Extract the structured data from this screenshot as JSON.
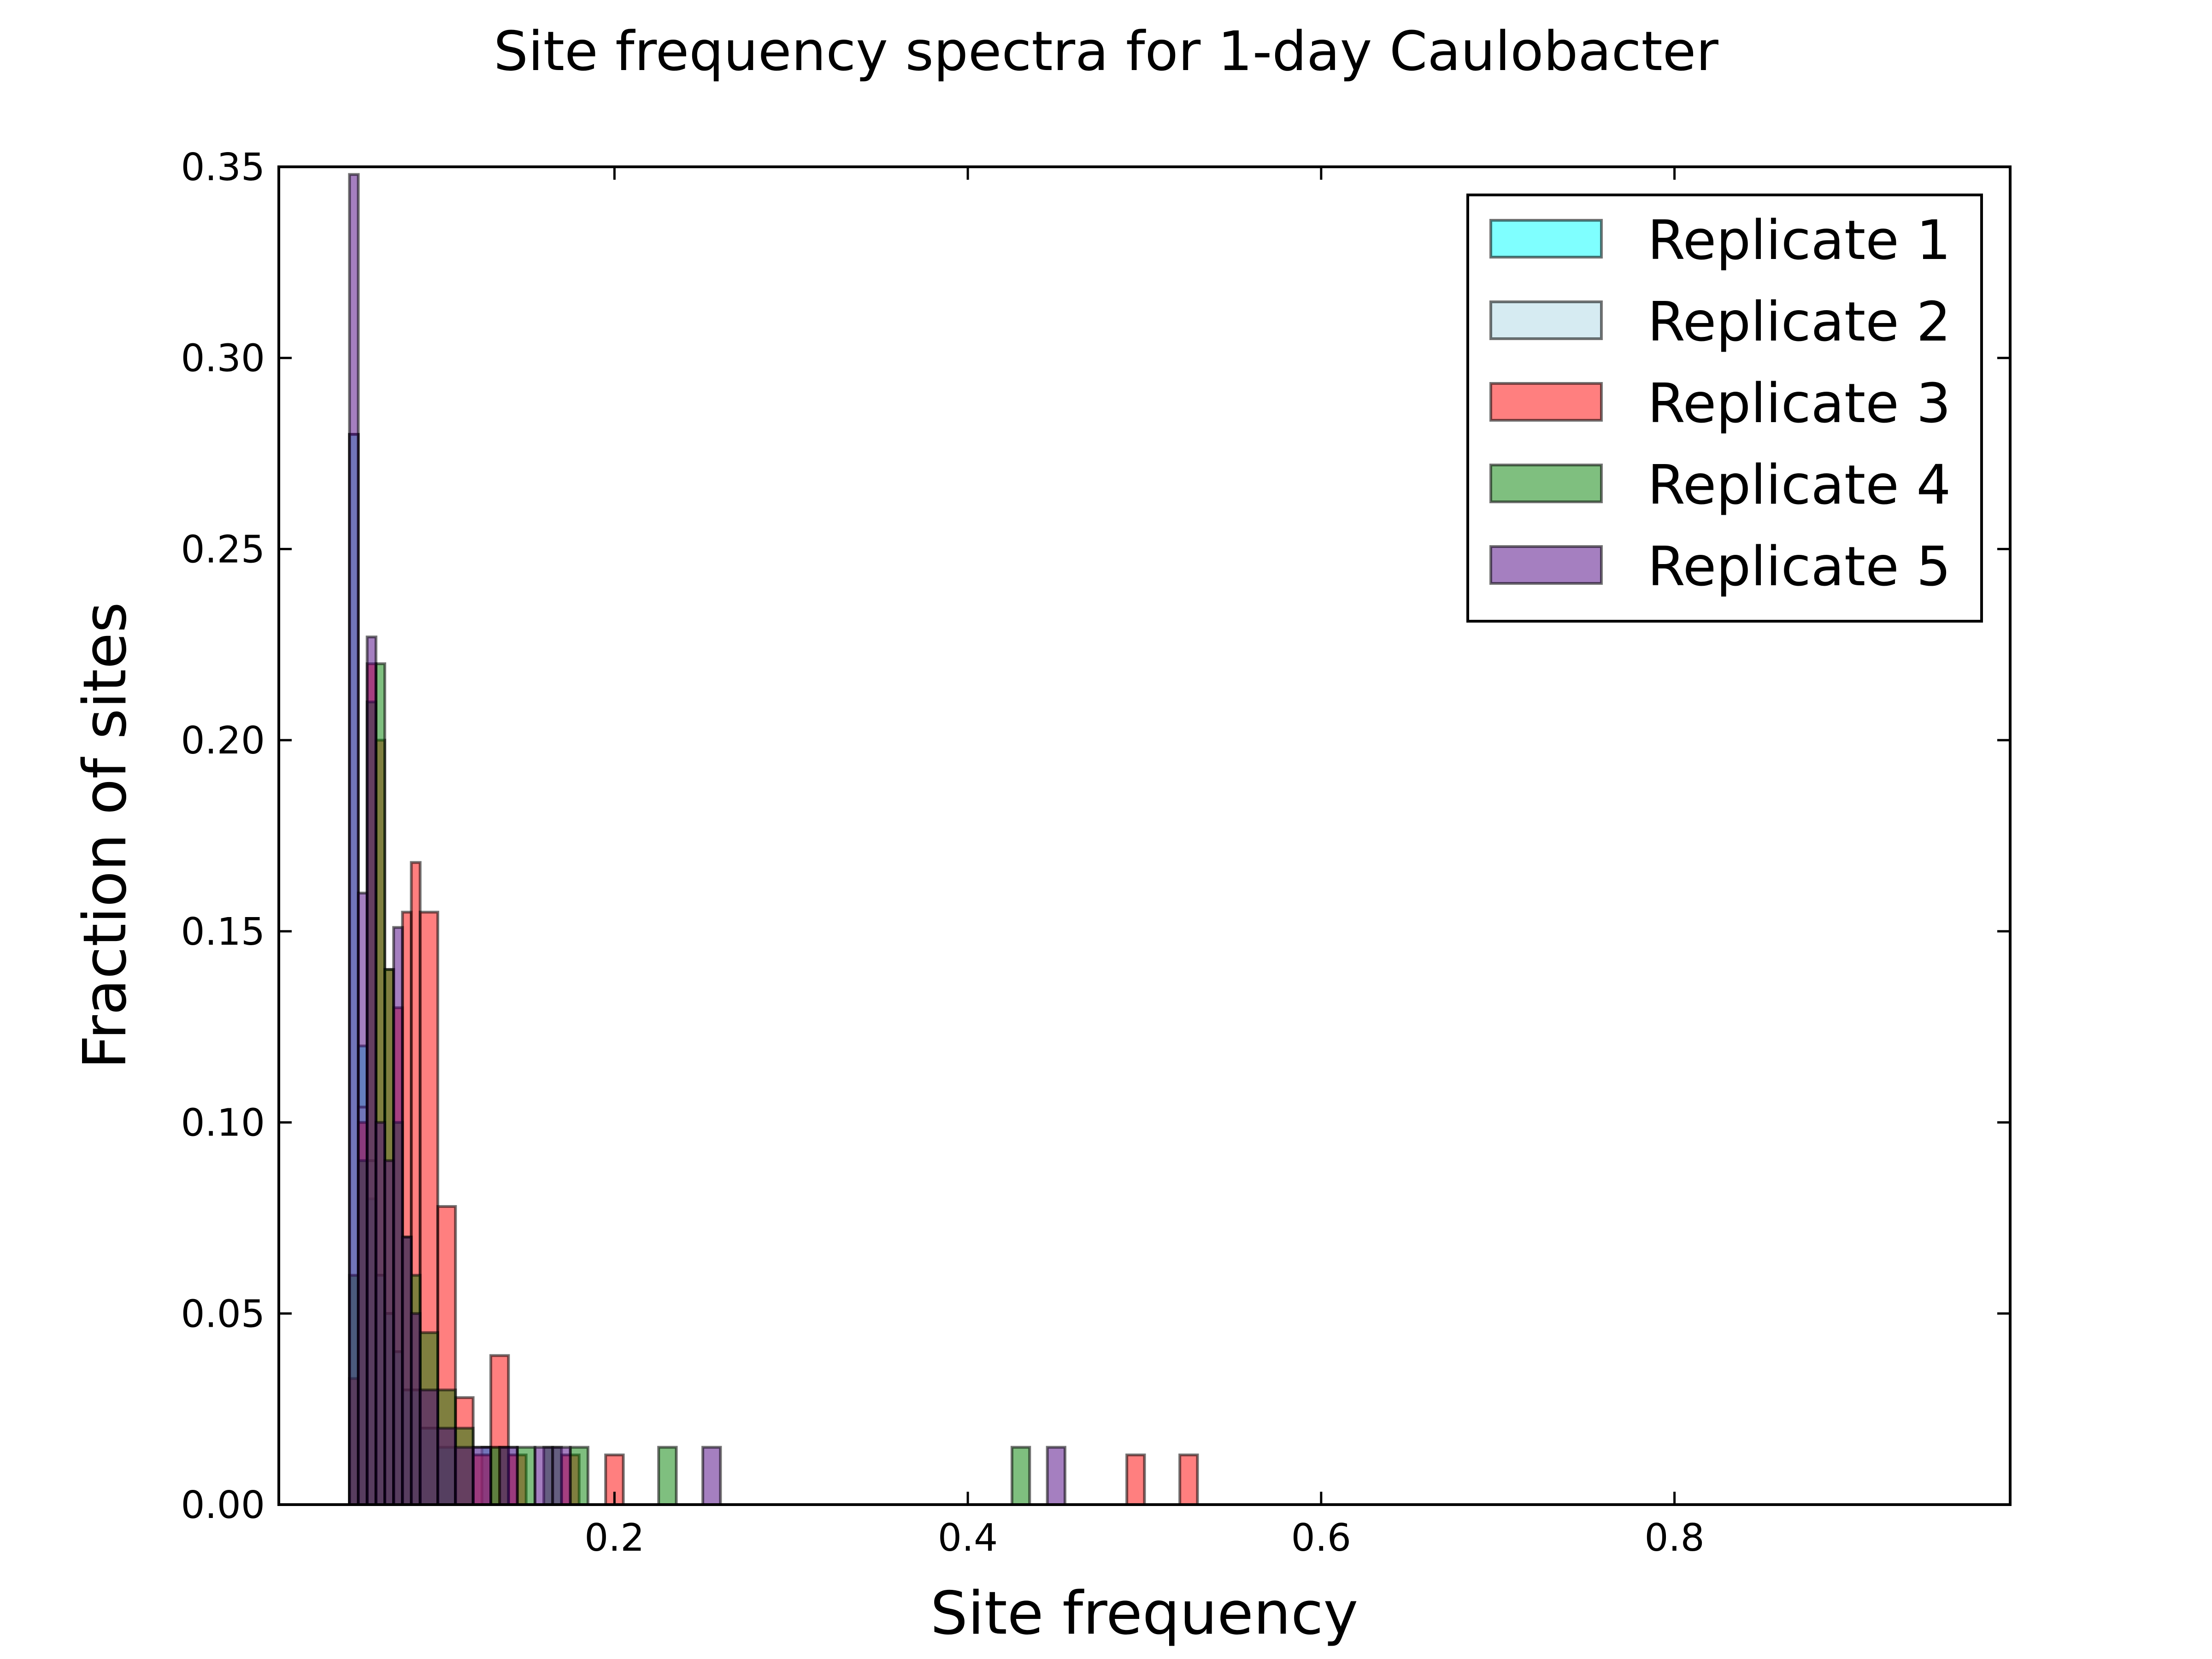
{
  "chart_data": {
    "type": "bar",
    "title": "Site frequency spectra for 1-day Caulobacter",
    "xlabel": "Site frequency",
    "ylabel": "Fraction of sites",
    "xlim": [
      0.01,
      0.99
    ],
    "ylim": [
      0,
      0.35
    ],
    "xticks": [
      0.2,
      0.4,
      0.6,
      0.8
    ],
    "xtick_labels": [
      "0.2",
      "0.4",
      "0.6",
      "0.8"
    ],
    "yticks": [
      0.0,
      0.05,
      0.1,
      0.15,
      0.2,
      0.25,
      0.3,
      0.35
    ],
    "ytick_labels": [
      "0.00",
      "0.05",
      "0.10",
      "0.15",
      "0.20",
      "0.25",
      "0.30",
      "0.35"
    ],
    "grid": false,
    "legend_position": "top-right",
    "series": [
      {
        "name": "Replicate 1",
        "color": "#00ffff",
        "alpha": 0.5,
        "bins": [
          {
            "x0": 0.05,
            "x1": 0.055,
            "y": 0.28
          },
          {
            "x0": 0.055,
            "x1": 0.06,
            "y": 0.12
          },
          {
            "x0": 0.06,
            "x1": 0.065,
            "y": 0.08
          },
          {
            "x0": 0.065,
            "x1": 0.07,
            "y": 0.06
          },
          {
            "x0": 0.07,
            "x1": 0.075,
            "y": 0.05
          },
          {
            "x0": 0.075,
            "x1": 0.08,
            "y": 0.04
          },
          {
            "x0": 0.08,
            "x1": 0.09,
            "y": 0.03
          },
          {
            "x0": 0.09,
            "x1": 0.1,
            "y": 0.02
          },
          {
            "x0": 0.1,
            "x1": 0.11,
            "y": 0.015
          },
          {
            "x0": 0.125,
            "x1": 0.135,
            "y": 0.015
          }
        ]
      },
      {
        "name": "Replicate 2",
        "color": "#add8e6",
        "alpha": 0.5,
        "bins": [
          {
            "x0": 0.05,
            "x1": 0.055,
            "y": 0.28
          },
          {
            "x0": 0.055,
            "x1": 0.06,
            "y": 0.104
          },
          {
            "x0": 0.06,
            "x1": 0.065,
            "y": 0.09
          },
          {
            "x0": 0.065,
            "x1": 0.07,
            "y": 0.06
          },
          {
            "x0": 0.07,
            "x1": 0.075,
            "y": 0.05
          },
          {
            "x0": 0.075,
            "x1": 0.08,
            "y": 0.04
          },
          {
            "x0": 0.08,
            "x1": 0.09,
            "y": 0.03
          },
          {
            "x0": 0.09,
            "x1": 0.1,
            "y": 0.02
          },
          {
            "x0": 0.12,
            "x1": 0.13,
            "y": 0.015
          },
          {
            "x0": 0.135,
            "x1": 0.145,
            "y": 0.015
          }
        ]
      },
      {
        "name": "Replicate 3",
        "color": "#ff0000",
        "alpha": 0.5,
        "bins": [
          {
            "x0": 0.05,
            "x1": 0.055,
            "y": 0.033
          },
          {
            "x0": 0.055,
            "x1": 0.06,
            "y": 0.1
          },
          {
            "x0": 0.06,
            "x1": 0.065,
            "y": 0.22
          },
          {
            "x0": 0.065,
            "x1": 0.07,
            "y": 0.2
          },
          {
            "x0": 0.07,
            "x1": 0.075,
            "y": 0.14
          },
          {
            "x0": 0.075,
            "x1": 0.08,
            "y": 0.13
          },
          {
            "x0": 0.08,
            "x1": 0.085,
            "y": 0.155
          },
          {
            "x0": 0.085,
            "x1": 0.09,
            "y": 0.168
          },
          {
            "x0": 0.09,
            "x1": 0.1,
            "y": 0.155
          },
          {
            "x0": 0.1,
            "x1": 0.11,
            "y": 0.078
          },
          {
            "x0": 0.11,
            "x1": 0.12,
            "y": 0.028
          },
          {
            "x0": 0.12,
            "x1": 0.13,
            "y": 0.013
          },
          {
            "x0": 0.13,
            "x1": 0.14,
            "y": 0.039
          },
          {
            "x0": 0.14,
            "x1": 0.15,
            "y": 0.013
          },
          {
            "x0": 0.17,
            "x1": 0.18,
            "y": 0.013
          },
          {
            "x0": 0.195,
            "x1": 0.205,
            "y": 0.013
          },
          {
            "x0": 0.49,
            "x1": 0.5,
            "y": 0.013
          },
          {
            "x0": 0.52,
            "x1": 0.53,
            "y": 0.013
          }
        ]
      },
      {
        "name": "Replicate 4",
        "color": "#008000",
        "alpha": 0.5,
        "bins": [
          {
            "x0": 0.05,
            "x1": 0.055,
            "y": 0.06
          },
          {
            "x0": 0.055,
            "x1": 0.06,
            "y": 0.09
          },
          {
            "x0": 0.06,
            "x1": 0.065,
            "y": 0.21
          },
          {
            "x0": 0.065,
            "x1": 0.07,
            "y": 0.22
          },
          {
            "x0": 0.07,
            "x1": 0.075,
            "y": 0.14
          },
          {
            "x0": 0.075,
            "x1": 0.08,
            "y": 0.1
          },
          {
            "x0": 0.08,
            "x1": 0.085,
            "y": 0.07
          },
          {
            "x0": 0.085,
            "x1": 0.09,
            "y": 0.06
          },
          {
            "x0": 0.09,
            "x1": 0.1,
            "y": 0.045
          },
          {
            "x0": 0.1,
            "x1": 0.11,
            "y": 0.03
          },
          {
            "x0": 0.11,
            "x1": 0.12,
            "y": 0.02
          },
          {
            "x0": 0.13,
            "x1": 0.14,
            "y": 0.015
          },
          {
            "x0": 0.145,
            "x1": 0.155,
            "y": 0.015
          },
          {
            "x0": 0.16,
            "x1": 0.17,
            "y": 0.015
          },
          {
            "x0": 0.175,
            "x1": 0.185,
            "y": 0.015
          },
          {
            "x0": 0.225,
            "x1": 0.235,
            "y": 0.015
          },
          {
            "x0": 0.425,
            "x1": 0.435,
            "y": 0.015
          }
        ]
      },
      {
        "name": "Replicate 5",
        "color": "#4b0082",
        "alpha": 0.5,
        "bins": [
          {
            "x0": 0.05,
            "x1": 0.055,
            "y": 0.348
          },
          {
            "x0": 0.055,
            "x1": 0.06,
            "y": 0.16
          },
          {
            "x0": 0.06,
            "x1": 0.065,
            "y": 0.227
          },
          {
            "x0": 0.065,
            "x1": 0.07,
            "y": 0.1
          },
          {
            "x0": 0.07,
            "x1": 0.075,
            "y": 0.09
          },
          {
            "x0": 0.075,
            "x1": 0.08,
            "y": 0.151
          },
          {
            "x0": 0.08,
            "x1": 0.085,
            "y": 0.07
          },
          {
            "x0": 0.085,
            "x1": 0.09,
            "y": 0.05
          },
          {
            "x0": 0.09,
            "x1": 0.1,
            "y": 0.03
          },
          {
            "x0": 0.1,
            "x1": 0.11,
            "y": 0.02
          },
          {
            "x0": 0.11,
            "x1": 0.12,
            "y": 0.015
          },
          {
            "x0": 0.12,
            "x1": 0.13,
            "y": 0.015
          },
          {
            "x0": 0.135,
            "x1": 0.145,
            "y": 0.015
          },
          {
            "x0": 0.155,
            "x1": 0.165,
            "y": 0.015
          },
          {
            "x0": 0.165,
            "x1": 0.175,
            "y": 0.015
          },
          {
            "x0": 0.25,
            "x1": 0.26,
            "y": 0.015
          },
          {
            "x0": 0.445,
            "x1": 0.455,
            "y": 0.015
          }
        ]
      }
    ]
  }
}
